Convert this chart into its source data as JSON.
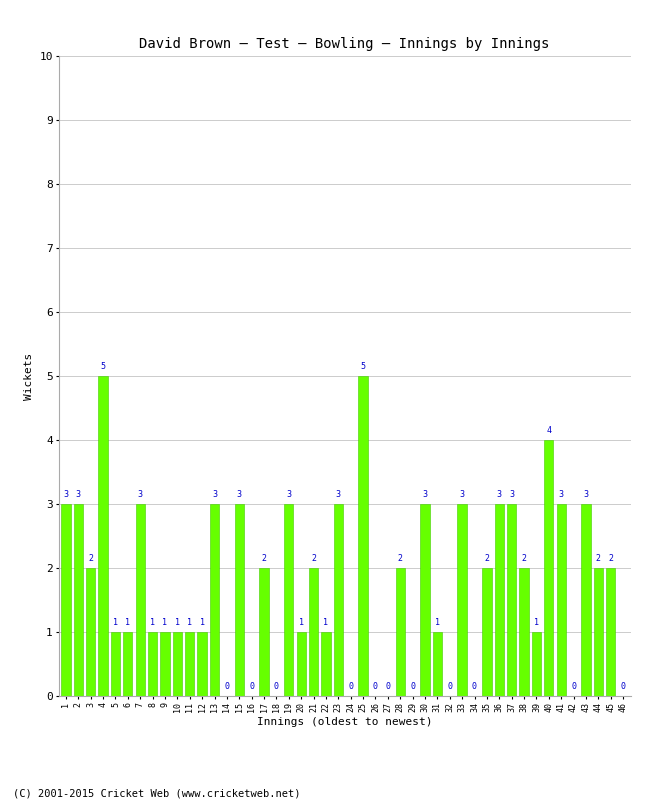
{
  "title": "David Brown – Test – Bowling – Innings by Innings",
  "xlabel": "Innings (oldest to newest)",
  "ylabel": "Wickets",
  "ylim": [
    0,
    10
  ],
  "yticks": [
    0,
    1,
    2,
    3,
    4,
    5,
    6,
    7,
    8,
    9,
    10
  ],
  "bar_color": "#66ff00",
  "bar_edge_color": "#44cc00",
  "label_color": "#0000cc",
  "background_color": "#ffffff",
  "grid_color": "#cccccc",
  "copyright": "(C) 2001-2015 Cricket Web (www.cricketweb.net)",
  "innings_labels": [
    "1",
    "2",
    "3",
    "4",
    "5",
    "6",
    "7",
    "8",
    "9",
    "10",
    "11",
    "12",
    "13",
    "14",
    "15",
    "16",
    "17",
    "18",
    "19",
    "20",
    "21",
    "22",
    "23",
    "24",
    "25",
    "26",
    "27",
    "28",
    "29",
    "30",
    "31",
    "32",
    "33",
    "34",
    "35",
    "36",
    "37",
    "38",
    "39",
    "40",
    "41",
    "42",
    "43",
    "44",
    "45",
    "46"
  ],
  "wickets": [
    3,
    3,
    2,
    5,
    1,
    1,
    3,
    1,
    1,
    1,
    1,
    1,
    3,
    0,
    3,
    0,
    2,
    0,
    3,
    1,
    2,
    1,
    3,
    0,
    5,
    0,
    0,
    2,
    0,
    3,
    1,
    0,
    3,
    0,
    2,
    3,
    3,
    2,
    1,
    4,
    3,
    0,
    3,
    2,
    2,
    0
  ]
}
